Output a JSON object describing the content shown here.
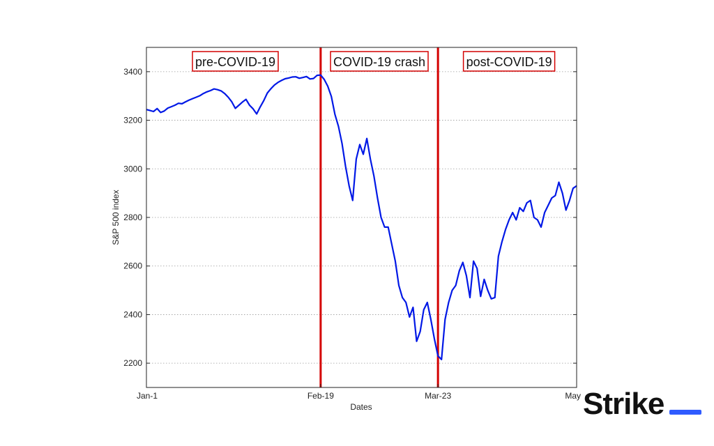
{
  "chart_data": {
    "type": "line",
    "title": "",
    "xlabel": "Dates",
    "ylabel": "S&P 500 index",
    "x_ticks": [
      "Jan-1",
      "Feb-19",
      "Mar-23",
      "May"
    ],
    "x_tick_days": [
      0,
      49,
      82,
      121
    ],
    "x_range_days": [
      0,
      121
    ],
    "ylim": [
      2100,
      3500
    ],
    "y_ticks": [
      2200,
      2400,
      2600,
      2800,
      3000,
      3200,
      3400
    ],
    "grid": "dotted horizontal",
    "line_color": "#0018e6",
    "marker_color": "#d40000",
    "markers": [
      {
        "label": "Feb-19",
        "day": 49
      },
      {
        "label": "Mar-23",
        "day": 82
      }
    ],
    "annotations": [
      {
        "text": "pre-COVID-19",
        "center_day": 25
      },
      {
        "text": "COVID-19 crash",
        "center_day": 65.5
      },
      {
        "text": "post-COVID-19",
        "center_day": 102
      }
    ],
    "series": [
      {
        "points": [
          [
            0,
            3244
          ],
          [
            1,
            3240
          ],
          [
            2,
            3236
          ],
          [
            3,
            3248
          ],
          [
            4,
            3232
          ],
          [
            5,
            3238
          ],
          [
            6,
            3250
          ],
          [
            7,
            3256
          ],
          [
            8,
            3262
          ],
          [
            9,
            3270
          ],
          [
            10,
            3268
          ],
          [
            11,
            3276
          ],
          [
            12,
            3283
          ],
          [
            13,
            3289
          ],
          [
            14,
            3295
          ],
          [
            15,
            3301
          ],
          [
            16,
            3310
          ],
          [
            17,
            3317
          ],
          [
            18,
            3322
          ],
          [
            19,
            3329
          ],
          [
            20,
            3326
          ],
          [
            21,
            3321
          ],
          [
            22,
            3310
          ],
          [
            23,
            3295
          ],
          [
            24,
            3276
          ],
          [
            25,
            3249
          ],
          [
            26,
            3262
          ],
          [
            27,
            3275
          ],
          [
            28,
            3286
          ],
          [
            29,
            3262
          ],
          [
            30,
            3247
          ],
          [
            31,
            3226
          ],
          [
            32,
            3255
          ],
          [
            33,
            3281
          ],
          [
            34,
            3312
          ],
          [
            35,
            3330
          ],
          [
            36,
            3345
          ],
          [
            37,
            3356
          ],
          [
            38,
            3364
          ],
          [
            39,
            3371
          ],
          [
            40,
            3374
          ],
          [
            41,
            3378
          ],
          [
            42,
            3379
          ],
          [
            43,
            3373
          ],
          [
            44,
            3376
          ],
          [
            45,
            3380
          ],
          [
            46,
            3370
          ],
          [
            47,
            3372
          ],
          [
            48,
            3385
          ],
          [
            49,
            3386
          ],
          [
            50,
            3368
          ],
          [
            51,
            3340
          ],
          [
            52,
            3298
          ],
          [
            53,
            3225
          ],
          [
            54,
            3175
          ],
          [
            55,
            3105
          ],
          [
            56,
            3010
          ],
          [
            57,
            2930
          ],
          [
            58,
            2870
          ],
          [
            59,
            3040
          ],
          [
            60,
            3100
          ],
          [
            61,
            3060
          ],
          [
            62,
            3125
          ],
          [
            63,
            3040
          ],
          [
            64,
            2970
          ],
          [
            65,
            2880
          ],
          [
            66,
            2800
          ],
          [
            67,
            2760
          ],
          [
            68,
            2760
          ],
          [
            69,
            2690
          ],
          [
            70,
            2620
          ],
          [
            71,
            2520
          ],
          [
            72,
            2470
          ],
          [
            73,
            2450
          ],
          [
            74,
            2390
          ],
          [
            75,
            2430
          ],
          [
            76,
            2290
          ],
          [
            77,
            2330
          ],
          [
            78,
            2420
          ],
          [
            79,
            2450
          ],
          [
            80,
            2380
          ],
          [
            81,
            2300
          ],
          [
            82,
            2230
          ],
          [
            83,
            2215
          ],
          [
            84,
            2380
          ],
          [
            85,
            2450
          ],
          [
            86,
            2500
          ],
          [
            87,
            2520
          ],
          [
            88,
            2580
          ],
          [
            89,
            2615
          ],
          [
            90,
            2560
          ],
          [
            91,
            2470
          ],
          [
            92,
            2620
          ],
          [
            93,
            2590
          ],
          [
            94,
            2475
          ],
          [
            95,
            2545
          ],
          [
            96,
            2500
          ],
          [
            97,
            2465
          ],
          [
            98,
            2470
          ],
          [
            99,
            2640
          ],
          [
            100,
            2700
          ],
          [
            101,
            2750
          ],
          [
            102,
            2790
          ],
          [
            103,
            2820
          ],
          [
            104,
            2790
          ],
          [
            105,
            2840
          ],
          [
            106,
            2825
          ],
          [
            107,
            2860
          ],
          [
            108,
            2870
          ],
          [
            109,
            2800
          ],
          [
            110,
            2790
          ],
          [
            111,
            2760
          ],
          [
            112,
            2820
          ],
          [
            113,
            2850
          ],
          [
            114,
            2880
          ],
          [
            115,
            2890
          ],
          [
            116,
            2945
          ],
          [
            117,
            2900
          ],
          [
            118,
            2830
          ],
          [
            119,
            2870
          ],
          [
            120,
            2920
          ],
          [
            121,
            2930
          ]
        ]
      }
    ]
  },
  "brand": {
    "logo_text": "Strike"
  }
}
